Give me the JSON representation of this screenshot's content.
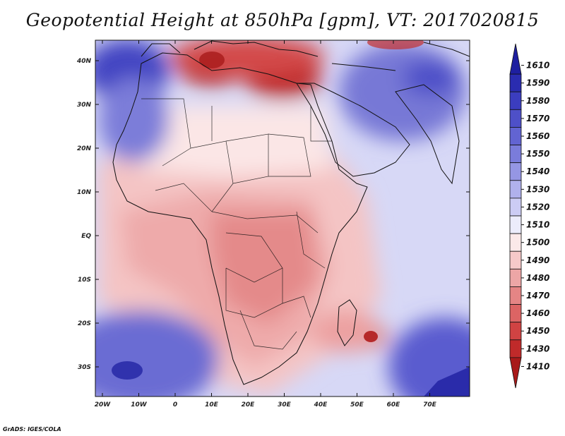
{
  "title": "Geopotential Height at 850hPa [gpm], VT: 2017020815",
  "map": {
    "region": "Africa",
    "lat_labels": [
      "40N",
      "30N",
      "20N",
      "10N",
      "EQ",
      "10S",
      "20S",
      "30S"
    ],
    "lon_labels": [
      "20W",
      "10W",
      "0",
      "10E",
      "20E",
      "30E",
      "40E",
      "50E",
      "60E",
      "70E"
    ]
  },
  "colorbar": {
    "levels": [
      "1610",
      "1590",
      "1580",
      "1570",
      "1560",
      "1550",
      "1540",
      "1530",
      "1520",
      "1510",
      "1500",
      "1490",
      "1480",
      "1470",
      "1460",
      "1450",
      "1430",
      "1410"
    ],
    "colors": [
      "#1e1fa0",
      "#2a2cb0",
      "#3b3dbf",
      "#4e50c8",
      "#6264d2",
      "#7a7cdb",
      "#9596e4",
      "#b0b1ec",
      "#ccccf4",
      "#ececfb",
      "#fbe9e9",
      "#f6c9c9",
      "#eda6a6",
      "#e58585",
      "#dc6464",
      "#d04343",
      "#c02a2a",
      "#a81a1a"
    ]
  },
  "credit": "GrADS: IGES/COLA"
}
